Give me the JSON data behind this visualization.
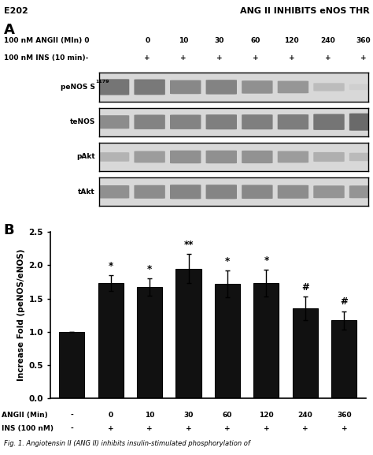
{
  "header_left": "E202",
  "header_right": "ANG II INHIBITS eNOS THR",
  "panel_A_label": "A",
  "panel_B_label": "B",
  "angii_row_label": "100 nM ANGII (MIn) 0",
  "angii_timepoints": [
    "0",
    "10",
    "30",
    "60",
    "120",
    "240",
    "360"
  ],
  "ins_row_label": "100 nM INS (10 min)-",
  "ins_plus": [
    "+",
    "+",
    "+",
    "+",
    "+",
    "+",
    "+"
  ],
  "blot_labels": [
    "peNOS S",
    "teNOS",
    "pAkt",
    "tAkt"
  ],
  "penOS_sup": "1179",
  "penOS_heights": [
    0.72,
    0.7,
    0.62,
    0.65,
    0.58,
    0.55,
    0.35,
    0.25
  ],
  "teNOS_heights": [
    0.6,
    0.65,
    0.65,
    0.67,
    0.67,
    0.68,
    0.72,
    0.78
  ],
  "pAkt_heights": [
    0.4,
    0.52,
    0.58,
    0.58,
    0.57,
    0.52,
    0.42,
    0.36
  ],
  "tAkt_heights": [
    0.58,
    0.6,
    0.64,
    0.64,
    0.62,
    0.6,
    0.56,
    0.56
  ],
  "bar_categories": [
    "-",
    "0",
    "10",
    "30",
    "60",
    "120",
    "240",
    "360"
  ],
  "bar_values": [
    1.0,
    1.73,
    1.67,
    1.95,
    1.72,
    1.73,
    1.35,
    1.17
  ],
  "bar_errors": [
    0.0,
    0.12,
    0.13,
    0.22,
    0.2,
    0.2,
    0.18,
    0.14
  ],
  "bar_color": "#111111",
  "bar_significance": [
    "",
    "*",
    "*",
    "**",
    "*",
    "*",
    "#",
    "#"
  ],
  "ylabel": "Increase Fold (peNOS/eNOS)",
  "ylim": [
    0,
    2.5
  ],
  "yticks": [
    0.0,
    0.5,
    1.0,
    1.5,
    2.0,
    2.5
  ],
  "angii_axis_label": "ANGII (Min)",
  "ins_axis_label": "INS (100 nM)",
  "angii_axis_values": [
    "-",
    "0",
    "10",
    "30",
    "60",
    "120",
    "240",
    "360"
  ],
  "ins_axis_values": [
    "-",
    "+",
    "+",
    "+",
    "+",
    "+",
    "+",
    "+"
  ],
  "fig_caption": "Fig. 1. Angiotensin II (ANG II) inhibits insulin-stimulated phosphorylation of"
}
